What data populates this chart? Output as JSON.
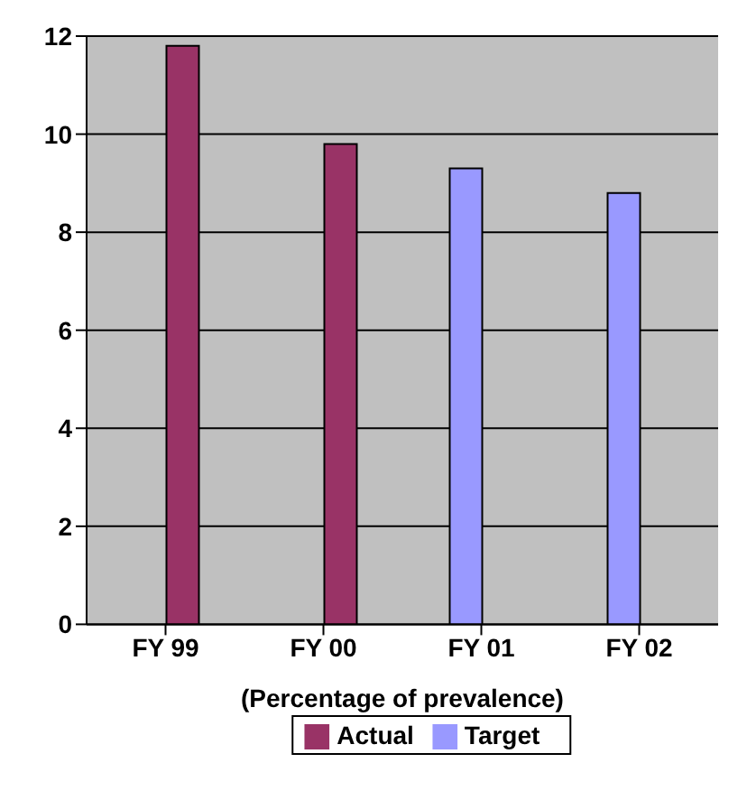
{
  "chart_data": {
    "type": "bar",
    "xlabel": "(Percentage of prevalence)",
    "categories": [
      "FY 99",
      "FY 00",
      "FY 01",
      "FY 02"
    ],
    "series": [
      {
        "name": "Target",
        "color": "#9999ff",
        "values": [
          0,
          0,
          9.3,
          8.8
        ]
      },
      {
        "name": "Actual",
        "color": "#993366",
        "values": [
          11.8,
          9.8,
          0,
          0
        ]
      }
    ],
    "ylim": [
      0,
      12
    ],
    "yticks": [
      0,
      2,
      4,
      6,
      8,
      10,
      12
    ],
    "grid": "y",
    "legend": "bottom"
  }
}
